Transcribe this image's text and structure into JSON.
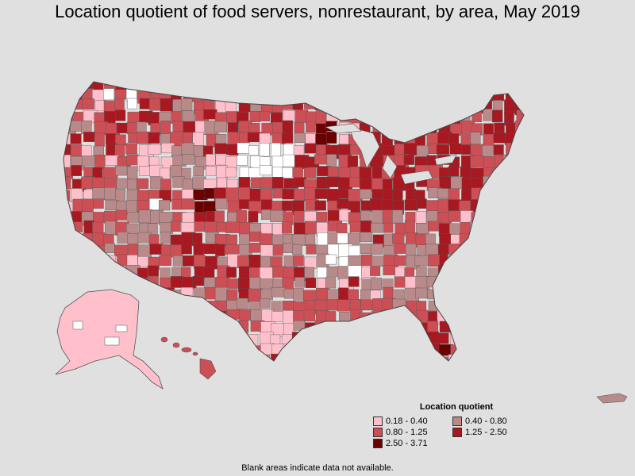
{
  "title": "Location quotient of food servers, nonrestaurant, by area, May 2019",
  "legend": {
    "title": "Location quotient",
    "items": [
      {
        "label": "0.18 - 0.40",
        "color": "#ffc0cb"
      },
      {
        "label": "0.40 - 0.80",
        "color": "#b88a8a"
      },
      {
        "label": "0.80 - 1.25",
        "color": "#cd4f56"
      },
      {
        "label": "1.25 - 2.50",
        "color": "#a81820"
      },
      {
        "label": "2.50 - 3.71",
        "color": "#6b0000"
      }
    ]
  },
  "footnote": "Blank areas indicate data not available.",
  "colors": {
    "background": "#e0e0e0",
    "no_data": "#ffffff",
    "border": "#555555"
  }
}
